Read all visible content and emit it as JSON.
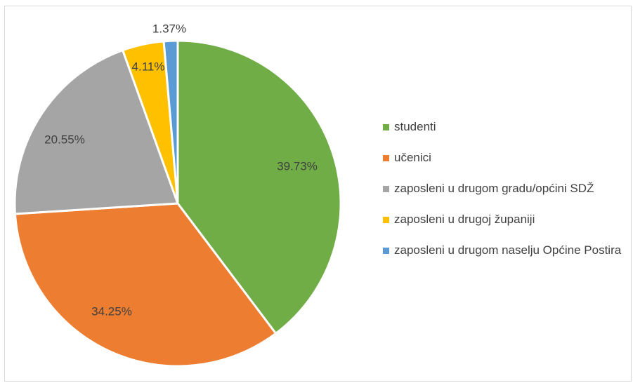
{
  "chart_data": {
    "type": "pie",
    "title": "",
    "start_angle_deg": 0,
    "direction": "clockwise",
    "legend_position": "right",
    "series": [
      {
        "label": "studenti",
        "value": 39.73,
        "display": "39.73%",
        "color": "#70ad47"
      },
      {
        "label": "učenici",
        "value": 34.25,
        "display": "34.25%",
        "color": "#ed7d31"
      },
      {
        "label": "zaposleni u drugom gradu/općini SDŽ",
        "value": 20.55,
        "display": "20.55%",
        "color": "#a5a5a5"
      },
      {
        "label": "zaposleni u drugoj županiji",
        "value": 4.11,
        "display": "4.11%",
        "color": "#ffc000"
      },
      {
        "label": "zaposleni u drugom naselju Općine Postira",
        "value": 1.37,
        "display": "1.37%",
        "color": "#5b9bd5"
      }
    ]
  }
}
